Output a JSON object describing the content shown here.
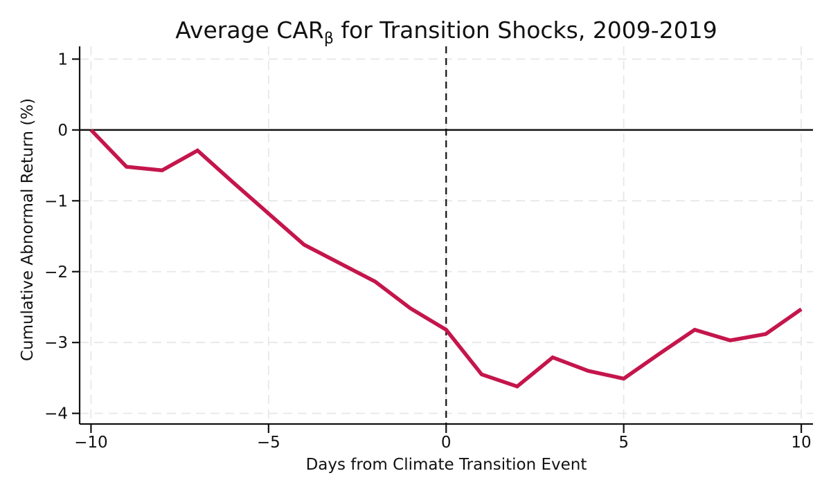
{
  "figure": {
    "title_prefix": "Average CAR",
    "title_subscript": "β",
    "title_suffix": " for Transition Shocks, 2009-2019"
  },
  "chart_data": {
    "type": "line",
    "title": "Average CARβ for Transition Shocks, 2009-2019",
    "xlabel": "Days from Climate Transition Event",
    "ylabel": "Cumulative Abnormal Return (%)",
    "x": [
      -10,
      -9,
      -8,
      -7,
      -6,
      -5,
      -4,
      -3,
      -2,
      -1,
      0,
      1,
      2,
      3,
      4,
      5,
      6,
      7,
      8,
      9,
      10
    ],
    "y": [
      0.0,
      -0.52,
      -0.57,
      -0.29,
      -0.74,
      -1.18,
      -1.62,
      -1.88,
      -2.14,
      -2.52,
      -2.82,
      -3.45,
      -3.62,
      -3.21,
      -3.4,
      -3.51,
      -3.16,
      -2.82,
      -2.97,
      -2.88,
      -2.53
    ],
    "xticks": [
      -10,
      -5,
      0,
      5,
      10
    ],
    "yticks": [
      1,
      0,
      -1,
      -2,
      -3,
      -4
    ],
    "xlim": [
      -10.32,
      10.33
    ],
    "ylim": [
      -4.15,
      1.18
    ],
    "grid": true,
    "legend_position": "none",
    "reference_lines": {
      "zero_hline_y": 0,
      "event_vline_x": 0,
      "event_vline_style": "dashed"
    },
    "colors": {
      "line": "#c4164c",
      "grid": "#e7e7e7",
      "axis": "#111111",
      "background": "#ffffff"
    }
  }
}
